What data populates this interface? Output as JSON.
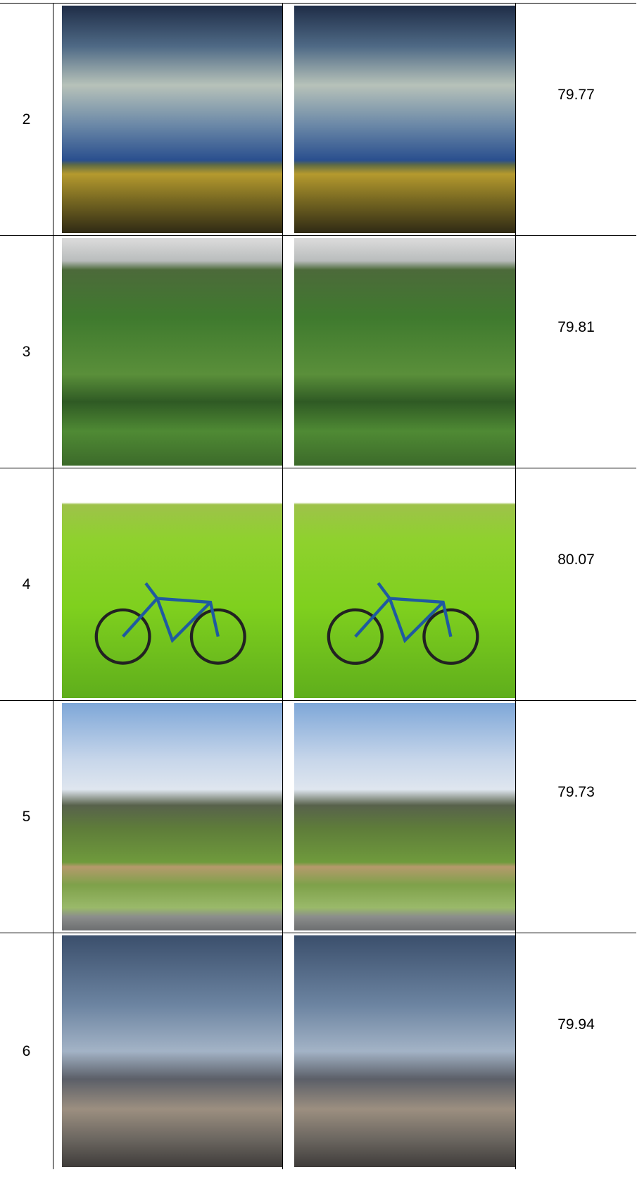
{
  "table": {
    "rows": [
      [
        "2",
        "79.77"
      ],
      [
        "3",
        "79.81"
      ],
      [
        "4",
        "80.07"
      ],
      [
        "5",
        "79.73"
      ],
      [
        "6",
        "79.94"
      ]
    ]
  }
}
